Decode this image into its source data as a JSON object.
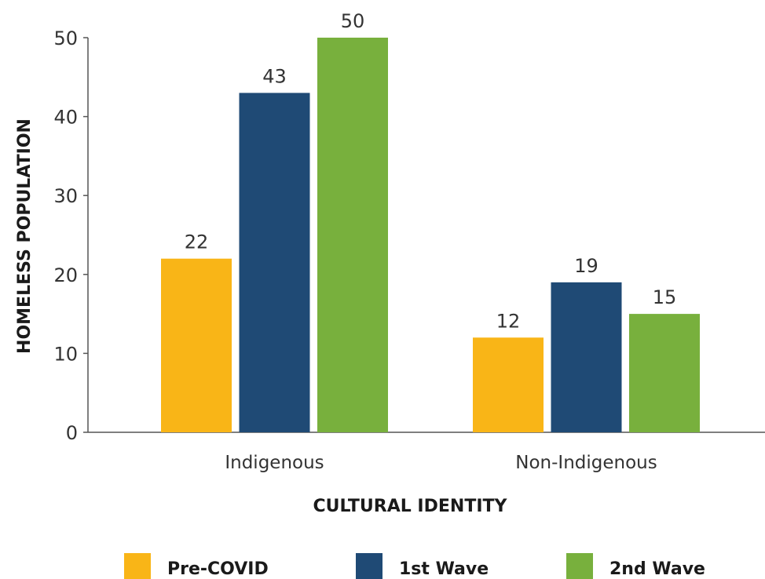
{
  "chart_data": {
    "type": "bar",
    "title": "",
    "xlabel": "CULTURAL IDENTITY",
    "ylabel": "HOMELESS POPULATION",
    "categories": [
      "Indigenous",
      "Non-Indigenous"
    ],
    "series": [
      {
        "name": "Pre-COVID",
        "color": "#F9B517",
        "values": [
          22,
          12
        ]
      },
      {
        "name": "1st Wave",
        "color": "#1F4A75",
        "values": [
          43,
          19
        ]
      },
      {
        "name": "2nd Wave",
        "color": "#78B03D",
        "values": [
          50,
          15
        ]
      }
    ],
    "ylim": [
      0,
      50
    ],
    "yticks": [
      0,
      10,
      20,
      30,
      40,
      50
    ],
    "grid": false,
    "legend_position": "bottom"
  }
}
